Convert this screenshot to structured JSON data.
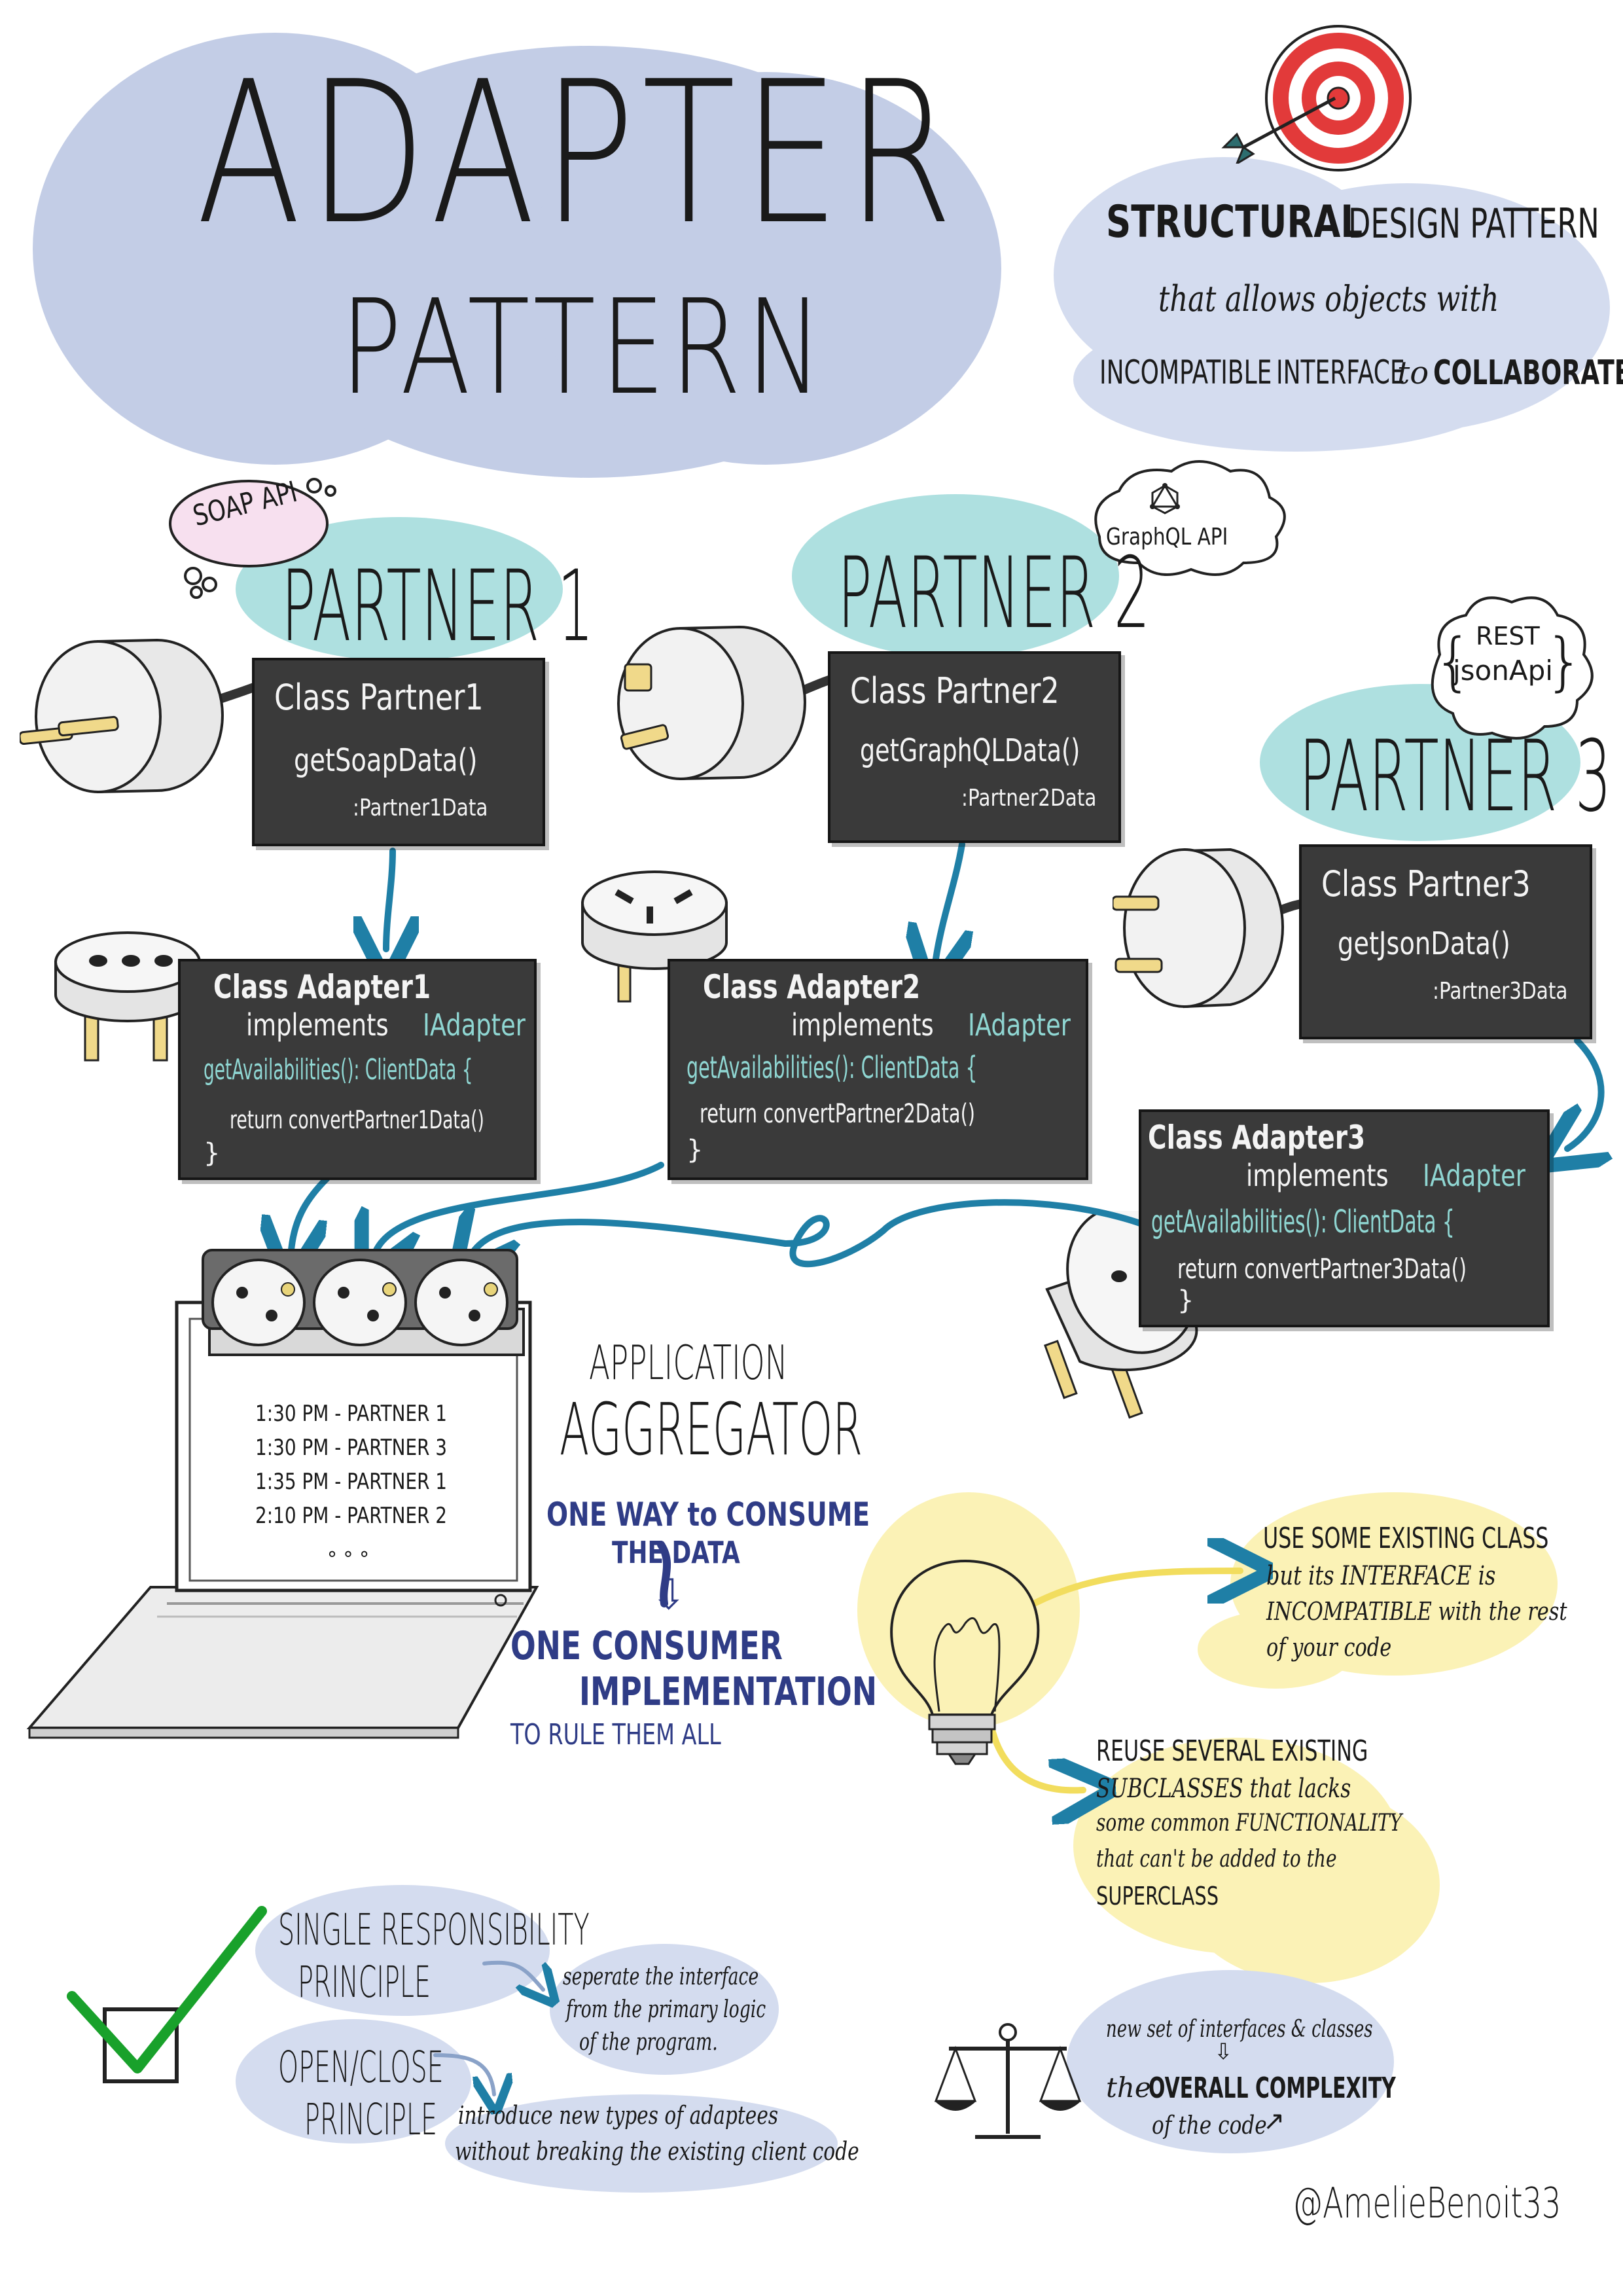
{
  "title": {
    "line1": "ADAPTER",
    "line2": "PATTERN"
  },
  "definition": {
    "line1_bold": "STRUCTURAL",
    "line1_rest": "DESIGN PATTERN",
    "line2": "that allows objects with",
    "line3_a": "INCOMPATIBLE",
    "line3_b": "INTERFACE",
    "line3_c": "to",
    "line3_d": "COLLABORATE"
  },
  "partners": [
    {
      "label": "PARTNER 1",
      "api": "SOAP API",
      "class": "Class  Partner1",
      "method": "getSoapData()",
      "returns": ":Partner1Data"
    },
    {
      "label": "PARTNER 2",
      "api": "GraphQL API",
      "class": "Class  Partner2",
      "method": "getGraphQLData()",
      "returns": ":Partner2Data"
    },
    {
      "label": "PARTNER 3",
      "api_line1": "REST",
      "api_line2": "jsonApi",
      "class": "Class  Partner3",
      "method": "getJsonData()",
      "returns": ":Partner3Data"
    }
  ],
  "adapters": [
    {
      "class": "Class Adapter1",
      "implements": "implements",
      "interface": "IAdapter",
      "method": "getAvailabilities(): ClientData {",
      "body": "return convertPartner1Data()",
      "close": "}"
    },
    {
      "class": "Class Adapter2",
      "implements": "implements",
      "interface": "IAdapter",
      "method": "getAvailabilities(): ClientData {",
      "body": "return convertPartner2Data()",
      "close": "}"
    },
    {
      "class": "Class Adapter3",
      "implements": "implements",
      "interface": "IAdapter",
      "method": "getAvailabilities(): ClientData {",
      "body": "return convertPartner3Data()",
      "close": "}"
    }
  ],
  "screen_lines": [
    "1:30 PM - PARTNER 1",
    "1:30 PM - PARTNER 3",
    "1:35 PM - PARTNER 1",
    "2:10 PM - PARTNER 2"
  ],
  "screen_more": "° ° °",
  "application": {
    "line1": "APPLICATION",
    "line2": "AGGREGATOR",
    "one_way_1": "ONE WAY to CONSUME",
    "one_way_2": "THE DATA",
    "consumer_1": "ONE CONSUMER",
    "consumer_2": "IMPLEMENTATION",
    "consumer_3": "TO RULE THEM ALL"
  },
  "when_to_use": [
    {
      "lines": [
        "USE SOME EXISTING CLASS",
        "but its INTERFACE is",
        "INCOMPATIBLE with the rest",
        "of your code"
      ]
    },
    {
      "lines": [
        "REUSE SEVERAL EXISTING",
        "SUBCLASSES that lacks",
        "some common FUNCTIONALITY",
        "that can't be added to the",
        "SUPERCLASS"
      ]
    }
  ],
  "principles": [
    {
      "line1": "SINGLE RESPONSIBILITY",
      "line2": "PRINCIPLE",
      "note": [
        "seperate the interface",
        "from the primary logic",
        "of the program."
      ]
    },
    {
      "line1": "OPEN/CLOSE",
      "line2": "PRINCIPLE",
      "note": [
        "introduce new types of adaptees",
        "without breaking the existing client code"
      ]
    }
  ],
  "drawback": {
    "line1": "new set of interfaces & classes",
    "line2_a": "the",
    "line2_b": "OVERALL COMPLEXITY",
    "line3": "of the code"
  },
  "signature": "@AmelieBenoit33",
  "icons": [
    "target-icon",
    "arrow-icon",
    "plug-icon",
    "socket-icon",
    "power-strip-icon",
    "laptop-icon",
    "lightbulb-icon",
    "checkmark-icon",
    "scale-icon",
    "graphql-icon"
  ],
  "colors": {
    "board": "#3a3a3a",
    "teal": "#8fd6d2",
    "arrow": "#1f7fa6",
    "blue_cloud": "#c3cde6",
    "yellow": "#fbf2b6",
    "navy": "#2f3c86",
    "target_red": "#e23a3a"
  }
}
